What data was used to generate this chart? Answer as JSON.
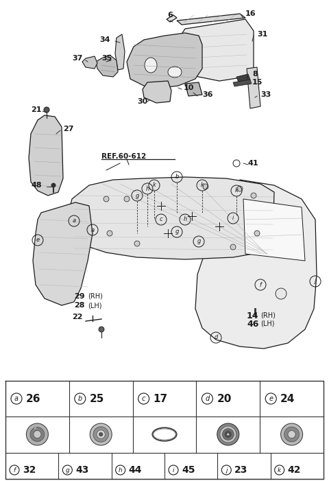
{
  "bg_color": "#ffffff",
  "lc": "#1a1a1a",
  "legend_table": {
    "row1": [
      {
        "letter": "a",
        "num": "26"
      },
      {
        "letter": "b",
        "num": "25"
      },
      {
        "letter": "c",
        "num": "17"
      },
      {
        "letter": "d",
        "num": "20"
      },
      {
        "letter": "e",
        "num": "24"
      }
    ],
    "row2": [
      {
        "letter": "f",
        "num": "32"
      },
      {
        "letter": "g",
        "num": "43"
      },
      {
        "letter": "h",
        "num": "44"
      },
      {
        "letter": "i",
        "num": "45"
      },
      {
        "letter": "j",
        "num": "23"
      },
      {
        "letter": "k",
        "num": "42"
      }
    ]
  }
}
